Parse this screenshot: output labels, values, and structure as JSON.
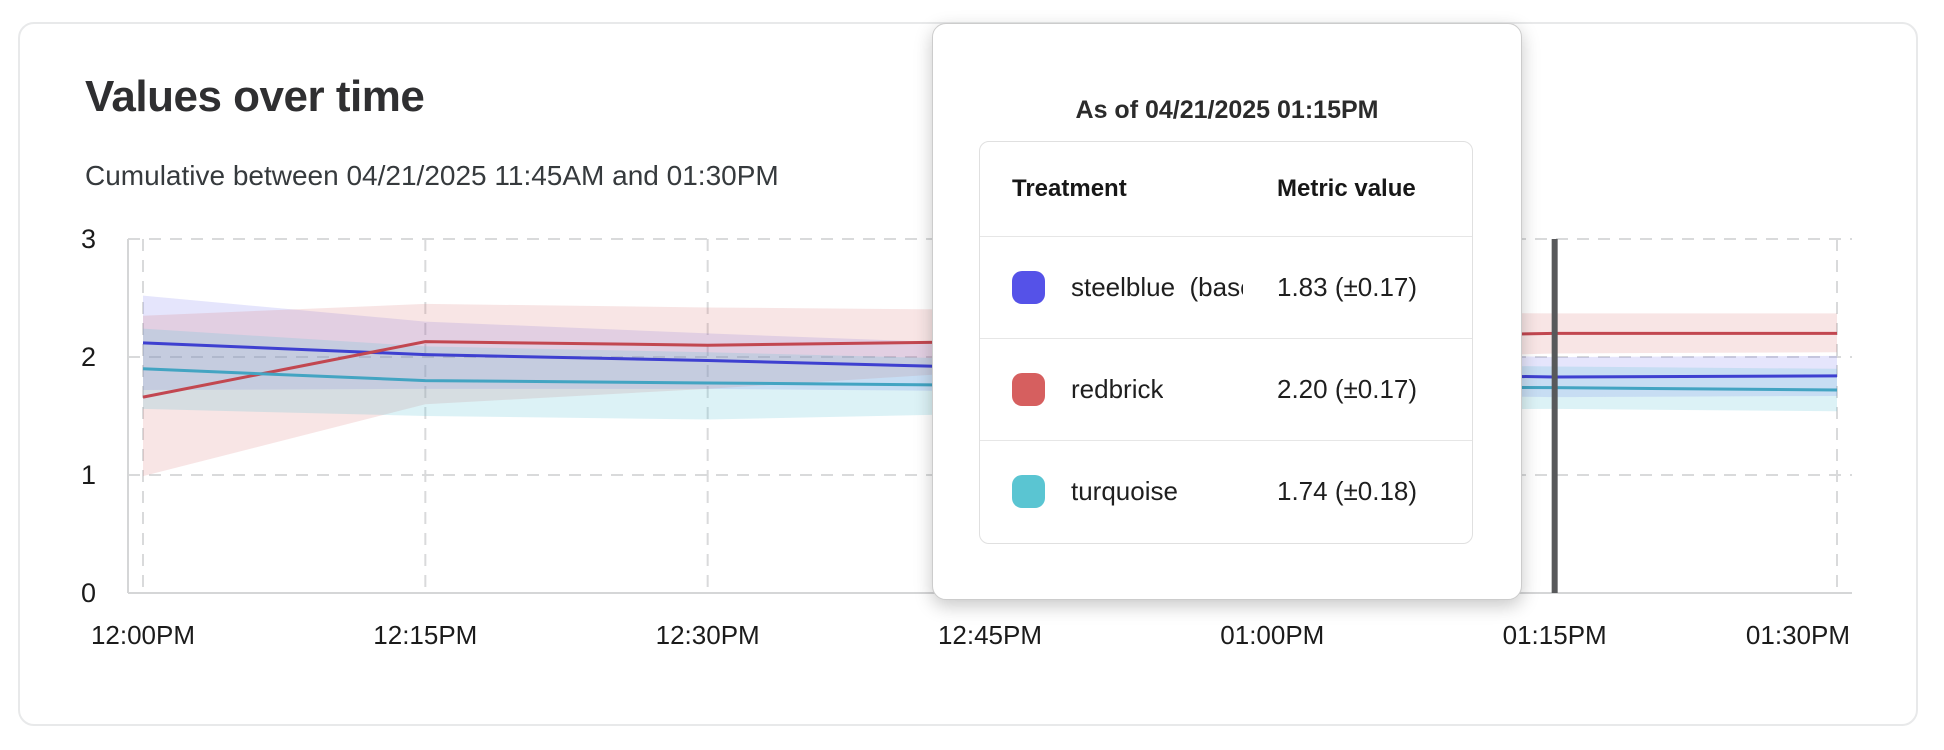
{
  "card": {
    "title": "Values over time",
    "subtitle": "Cumulative between 04/21/2025 11:45AM and 01:30PM"
  },
  "tooltip": {
    "title": "As of 04/21/2025 01:15PM",
    "columns": [
      "Treatment",
      "Metric value"
    ],
    "rows": [
      {
        "swatch_color": "#5552e8",
        "label": "steelblue  (baseli",
        "value": "1.83 (±0.17)"
      },
      {
        "swatch_color": "#d65f5f",
        "label": "redbrick",
        "value": "2.20 (±0.17)"
      },
      {
        "swatch_color": "#5ac5d2",
        "label": "turquoise",
        "value": "1.74 (±0.18)"
      }
    ]
  },
  "chart_data": {
    "type": "line",
    "title": "Values over time",
    "subtitle": "Cumulative between 04/21/2025 11:45AM and 01:30PM",
    "x": [
      "12:00PM",
      "12:15PM",
      "12:30PM",
      "12:45PM",
      "01:00PM",
      "01:15PM",
      "01:30PM"
    ],
    "ylim": [
      0,
      3
    ],
    "yticks": [
      0,
      1,
      2,
      3
    ],
    "grid": true,
    "hover_x": "01:15PM",
    "hover_line_color": "#58595b",
    "series": [
      {
        "name": "steelblue (baseline)",
        "color": "#3e40d0",
        "band_color": "rgba(102,102,235,0.17)",
        "values": [
          2.12,
          2.02,
          1.97,
          1.91,
          1.87,
          1.83,
          1.84
        ],
        "upper": [
          2.52,
          2.3,
          2.2,
          2.11,
          2.05,
          2.0,
          2.01
        ],
        "lower": [
          1.72,
          1.73,
          1.73,
          1.71,
          1.69,
          1.66,
          1.67
        ],
        "value_at_hover": "1.83 (±0.17)"
      },
      {
        "name": "redbrick",
        "color": "#c24750",
        "band_color": "rgba(214,98,98,0.17)",
        "values": [
          1.66,
          2.13,
          2.1,
          2.13,
          2.16,
          2.2,
          2.2
        ],
        "upper": [
          2.35,
          2.45,
          2.42,
          2.4,
          2.38,
          2.37,
          2.37
        ],
        "lower": [
          0.99,
          1.6,
          1.73,
          1.88,
          1.97,
          2.03,
          2.04
        ],
        "value_at_hover": "2.20 (±0.17)"
      },
      {
        "name": "turquoise",
        "color": "#43a4c2",
        "band_color": "rgba(95,198,214,0.22)",
        "values": [
          1.9,
          1.8,
          1.78,
          1.76,
          1.75,
          1.74,
          1.72
        ],
        "upper": [
          2.24,
          2.09,
          2.04,
          1.98,
          1.94,
          1.92,
          1.9
        ],
        "lower": [
          1.56,
          1.5,
          1.47,
          1.52,
          1.55,
          1.56,
          1.54
        ],
        "value_at_hover": "1.74 (±0.18)"
      }
    ],
    "axis_text_color": "#1b1b1b",
    "gridline_color": "#d9dadb",
    "axis_line_color": "#d5d6d7"
  }
}
